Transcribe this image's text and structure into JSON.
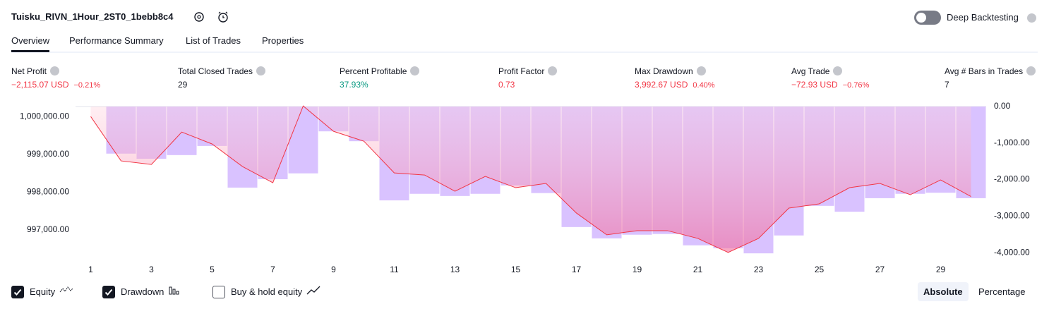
{
  "header": {
    "title": "Tuisku_RIVN_1Hour_2ST0_1bebb8c4",
    "deep_backtesting": {
      "label": "Deep Backtesting",
      "enabled": false
    }
  },
  "tabs": [
    "Overview",
    "Performance Summary",
    "List of Trades",
    "Properties"
  ],
  "active_tab": 0,
  "metrics": [
    {
      "label": "Net Profit",
      "value": "−2,115.07 USD",
      "sub": "−0.21%",
      "color": "#f23645"
    },
    {
      "label": "Total Closed Trades",
      "value": "29",
      "color": "#131722"
    },
    {
      "label": "Percent Profitable",
      "value": "37.93%",
      "color": "#089981"
    },
    {
      "label": "Profit Factor",
      "value": "0.73",
      "color": "#f23645"
    },
    {
      "label": "Max Drawdown",
      "value": "3,992.67 USD",
      "sub": "0.40%",
      "color": "#f23645"
    },
    {
      "label": "Avg Trade",
      "value": "−72.93 USD",
      "sub": "−0.76%",
      "color": "#f23645"
    },
    {
      "label": "Avg # Bars in Trades",
      "value": "7",
      "color": "#131722"
    }
  ],
  "chart_data": {
    "type": "combo",
    "x": [
      1,
      2,
      3,
      4,
      5,
      6,
      7,
      8,
      9,
      10,
      11,
      12,
      13,
      14,
      15,
      16,
      17,
      18,
      19,
      20,
      21,
      22,
      23,
      24,
      25,
      26,
      27,
      28,
      29,
      30
    ],
    "xlim": [
      0.5,
      30.5
    ],
    "xticks": [
      1,
      3,
      5,
      7,
      9,
      11,
      13,
      15,
      17,
      19,
      21,
      23,
      25,
      27,
      29
    ],
    "series": [
      {
        "type": "bar",
        "axis": "y2",
        "color": "#d9c2ff",
        "values": [
          0,
          -1290,
          -1430,
          -1330,
          -1080,
          -2220,
          -1990,
          -1830,
          -680,
          -950,
          -2570,
          -2390,
          -2450,
          -2390,
          -2160,
          -2370,
          -3300,
          -3610,
          -3510,
          -3490,
          -3800,
          -3880,
          -4020,
          -3530,
          -2720,
          -2880,
          -2510,
          -2390,
          -2360,
          -2510
        ]
      },
      {
        "type": "line",
        "color": "#f23645",
        "values": [
          1000000,
          998827,
          998734,
          999590,
          999274,
          998678,
          998250,
          1000279,
          999609,
          999348,
          998510,
          998454,
          998026,
          998417,
          998119,
          998231,
          997449,
          996872,
          996983,
          996983,
          996778,
          996406,
          996778,
          997579,
          997691,
          998119,
          998231,
          997933,
          998324,
          997885
        ]
      }
    ],
    "ylim": [
      996180,
      1000470
    ],
    "yticks": [
      {
        "value": 1000000,
        "label": "1,000,000.00"
      },
      {
        "value": 999000,
        "label": "999,000.00"
      },
      {
        "value": 998000,
        "label": "998,000.00"
      },
      {
        "value": 997000,
        "label": "997,000.00"
      }
    ],
    "y2lim": [
      -4230,
      212
    ],
    "y2ticks": [
      {
        "value": 0,
        "label": "0.00"
      },
      {
        "value": -1000,
        "label": "-1,000.00"
      },
      {
        "value": -2000,
        "label": "-2,000.00"
      },
      {
        "value": -3000,
        "label": "-3,000.00"
      },
      {
        "value": -4000,
        "label": "-4,000.00"
      }
    ]
  },
  "legend": [
    {
      "label": "Equity",
      "checked": true
    },
    {
      "label": "Drawdown",
      "checked": true
    },
    {
      "label": "Buy & hold equity",
      "checked": false
    }
  ],
  "scale_buttons": [
    "Absolute",
    "Percentage"
  ],
  "active_scale": 0
}
